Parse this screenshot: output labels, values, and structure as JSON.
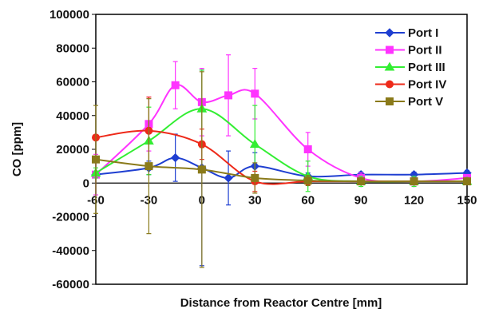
{
  "chart_data": {
    "type": "line",
    "xlabel": "Distance from Reactor Centre [mm]",
    "ylabel": "CO [ppm]",
    "xlim": [
      -60,
      150
    ],
    "ylim": [
      -60000,
      100000
    ],
    "x_ticks": [
      "-60",
      "-30",
      "0",
      "30",
      "60",
      "90",
      "120",
      "150"
    ],
    "y_ticks": [
      "100000",
      "80000",
      "60000",
      "40000",
      "20000",
      "0",
      "-20000",
      "-40000",
      "-60000"
    ],
    "legend_position": "top-right",
    "grid": false,
    "series": [
      {
        "name": "Port I",
        "color": "#1f3fd1",
        "marker": "diamond",
        "points": [
          {
            "x": -60,
            "y": 5000,
            "err": 2000
          },
          {
            "x": -30,
            "y": 9000,
            "err": 4000
          },
          {
            "x": -15,
            "y": 15000,
            "err": 14000
          },
          {
            "x": 0,
            "y": 9000,
            "err": 58000
          },
          {
            "x": 15,
            "y": 3000,
            "err": 16000
          },
          {
            "x": 30,
            "y": 10000,
            "err": 8000
          },
          {
            "x": 60,
            "y": 4000,
            "err": 2000
          },
          {
            "x": 90,
            "y": 5000,
            "err": 1500
          },
          {
            "x": 120,
            "y": 5000,
            "err": 1500
          },
          {
            "x": 150,
            "y": 6000,
            "err": 1500
          }
        ]
      },
      {
        "name": "Port II",
        "color": "#ff33ff",
        "marker": "square",
        "points": [
          {
            "x": -60,
            "y": 5000,
            "err": 12000
          },
          {
            "x": -30,
            "y": 35000,
            "err": 16000
          },
          {
            "x": -15,
            "y": 58000,
            "err": 14000
          },
          {
            "x": 0,
            "y": 48000,
            "err": 20000
          },
          {
            "x": 15,
            "y": 52000,
            "err": 24000
          },
          {
            "x": 30,
            "y": 53000,
            "err": 15000
          },
          {
            "x": 60,
            "y": 20000,
            "err": 10000
          },
          {
            "x": 90,
            "y": 3000,
            "err": 3000
          },
          {
            "x": 120,
            "y": 1000,
            "err": 3000
          },
          {
            "x": 150,
            "y": 3000,
            "err": 2000
          }
        ]
      },
      {
        "name": "Port III",
        "color": "#33ee33",
        "marker": "triangle",
        "points": [
          {
            "x": -60,
            "y": 6000,
            "err": 3000
          },
          {
            "x": -30,
            "y": 25000,
            "err": 20000
          },
          {
            "x": 0,
            "y": 44000,
            "err": 23000
          },
          {
            "x": 30,
            "y": 23000,
            "err": 23000
          },
          {
            "x": 60,
            "y": 4000,
            "err": 9000
          },
          {
            "x": 90,
            "y": 1000,
            "err": 3000
          },
          {
            "x": 120,
            "y": 1000,
            "err": 3000
          },
          {
            "x": 150,
            "y": 1000,
            "err": 2000
          }
        ]
      },
      {
        "name": "Port IV",
        "color": "#ee2a1a",
        "marker": "circle",
        "points": [
          {
            "x": -60,
            "y": 27000,
            "err": 0
          },
          {
            "x": -30,
            "y": 31000,
            "err": 20000
          },
          {
            "x": 0,
            "y": 23000,
            "err": 9000
          },
          {
            "x": 30,
            "y": 1000,
            "err": 6000
          },
          {
            "x": 60,
            "y": 1000,
            "err": 2000
          },
          {
            "x": 90,
            "y": 1000,
            "err": 1000
          },
          {
            "x": 120,
            "y": 1000,
            "err": 1000
          },
          {
            "x": 150,
            "y": 1000,
            "err": 1000
          }
        ]
      },
      {
        "name": "Port V",
        "color": "#8a7a1a",
        "marker": "square",
        "points": [
          {
            "x": -60,
            "y": 14000,
            "err": 32000
          },
          {
            "x": -30,
            "y": 10000,
            "err": 40000
          },
          {
            "x": 0,
            "y": 8000,
            "err": 58000
          },
          {
            "x": 30,
            "y": 3000,
            "err": 9000
          },
          {
            "x": 60,
            "y": 1500,
            "err": 3000
          },
          {
            "x": 90,
            "y": 1000,
            "err": 2000
          },
          {
            "x": 120,
            "y": 1000,
            "err": 2000
          },
          {
            "x": 150,
            "y": 1000,
            "err": 1500
          }
        ]
      }
    ]
  }
}
